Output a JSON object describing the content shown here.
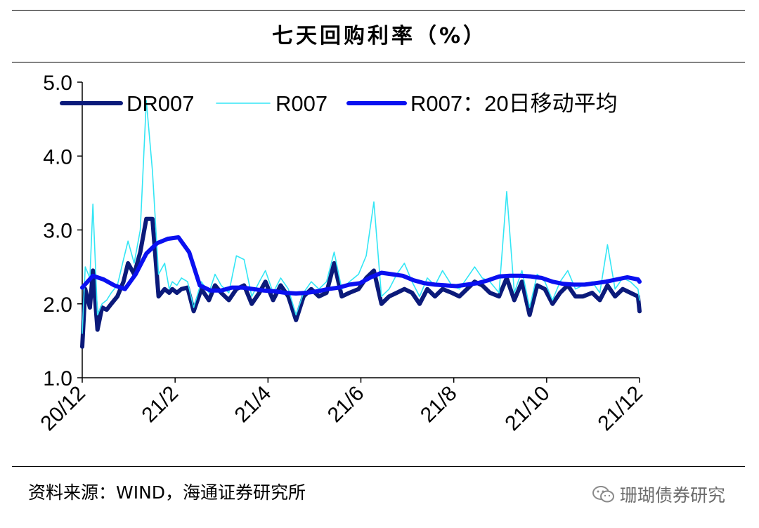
{
  "title": "七天回购利率（%）",
  "source": "资料来源：WIND，海通证券研究所",
  "watermark": "珊瑚债券研究",
  "colors": {
    "DR007": "#0b1a7a",
    "R007": "#33e6f5",
    "R007_ma20": "#0a10f0"
  },
  "chart_data": {
    "type": "line",
    "title": "七天回购利率（%）",
    "xlabel": "",
    "ylabel": "",
    "x_ticks": [
      "20/12",
      "21/2",
      "21/4",
      "21/6",
      "21/8",
      "21/10",
      "21/12"
    ],
    "ylim": [
      1.0,
      5.0
    ],
    "y_ticks": [
      "1.0",
      "2.0",
      "3.0",
      "4.0",
      "5.0"
    ],
    "grid": false,
    "legend_position": "top",
    "series": [
      {
        "name": "DR007",
        "x": [
          "2020-12-01",
          "2020-12-03",
          "2020-12-06",
          "2020-12-08",
          "2020-12-11",
          "2020-12-14",
          "2020-12-17",
          "2020-12-20",
          "2020-12-24",
          "2020-12-28",
          "2020-12-31",
          "2021-01-04",
          "2021-01-08",
          "2021-01-12",
          "2021-01-16",
          "2021-01-20",
          "2021-01-24",
          "2021-01-27",
          "2021-01-29",
          "2021-02-01",
          "2021-02-04",
          "2021-02-08",
          "2021-02-12",
          "2021-02-17",
          "2021-02-22",
          "2021-02-26",
          "2021-03-02",
          "2021-03-07",
          "2021-03-12",
          "2021-03-17",
          "2021-03-22",
          "2021-03-27",
          "2021-03-31",
          "2021-04-05",
          "2021-04-10",
          "2021-04-15",
          "2021-04-20",
          "2021-04-25",
          "2021-04-30",
          "2021-05-05",
          "2021-05-10",
          "2021-05-15",
          "2021-05-20",
          "2021-05-25",
          "2021-05-31",
          "2021-06-05",
          "2021-06-10",
          "2021-06-15",
          "2021-06-20",
          "2021-06-25",
          "2021-06-30",
          "2021-07-05",
          "2021-07-10",
          "2021-07-15",
          "2021-07-20",
          "2021-07-25",
          "2021-07-31",
          "2021-08-05",
          "2021-08-10",
          "2021-08-15",
          "2021-08-20",
          "2021-08-25",
          "2021-08-31",
          "2021-09-05",
          "2021-09-10",
          "2021-09-15",
          "2021-09-20",
          "2021-09-25",
          "2021-09-30",
          "2021-10-05",
          "2021-10-10",
          "2021-10-15",
          "2021-10-20",
          "2021-10-25",
          "2021-10-31",
          "2021-11-05",
          "2021-11-10",
          "2021-11-15",
          "2021-11-20",
          "2021-11-25",
          "2021-11-30",
          "2021-12-01"
        ],
        "values": [
          1.42,
          2.2,
          1.95,
          2.45,
          1.65,
          1.95,
          1.92,
          2.0,
          2.1,
          2.3,
          2.55,
          2.4,
          2.7,
          3.15,
          3.15,
          2.1,
          2.2,
          2.15,
          2.2,
          2.15,
          2.2,
          2.22,
          1.9,
          2.2,
          2.05,
          2.25,
          2.15,
          2.05,
          2.2,
          2.25,
          2.0,
          2.15,
          2.3,
          2.05,
          2.25,
          2.1,
          1.78,
          2.1,
          2.2,
          2.1,
          2.15,
          2.55,
          2.1,
          2.15,
          2.2,
          2.35,
          2.45,
          2.0,
          2.1,
          2.15,
          2.2,
          2.15,
          2.0,
          2.2,
          2.1,
          2.2,
          2.15,
          2.1,
          2.2,
          2.3,
          2.25,
          2.15,
          2.1,
          2.35,
          2.05,
          2.3,
          1.85,
          2.25,
          2.2,
          2.0,
          2.15,
          2.25,
          2.1,
          2.1,
          2.15,
          2.05,
          2.25,
          2.1,
          2.2,
          2.15,
          2.1,
          1.9
        ]
      },
      {
        "name": "R007",
        "x": [
          "2020-12-01",
          "2020-12-03",
          "2020-12-06",
          "2020-12-08",
          "2020-12-11",
          "2020-12-14",
          "2020-12-17",
          "2020-12-20",
          "2020-12-24",
          "2020-12-28",
          "2020-12-31",
          "2021-01-04",
          "2021-01-08",
          "2021-01-12",
          "2021-01-16",
          "2021-01-20",
          "2021-01-24",
          "2021-01-27",
          "2021-01-29",
          "2021-02-01",
          "2021-02-04",
          "2021-02-08",
          "2021-02-12",
          "2021-02-17",
          "2021-02-22",
          "2021-02-26",
          "2021-03-02",
          "2021-03-07",
          "2021-03-12",
          "2021-03-17",
          "2021-03-22",
          "2021-03-27",
          "2021-03-31",
          "2021-04-05",
          "2021-04-10",
          "2021-04-15",
          "2021-04-20",
          "2021-04-25",
          "2021-04-30",
          "2021-05-05",
          "2021-05-10",
          "2021-05-15",
          "2021-05-20",
          "2021-05-25",
          "2021-05-31",
          "2021-06-05",
          "2021-06-10",
          "2021-06-15",
          "2021-06-20",
          "2021-06-25",
          "2021-06-30",
          "2021-07-05",
          "2021-07-10",
          "2021-07-15",
          "2021-07-20",
          "2021-07-25",
          "2021-07-31",
          "2021-08-05",
          "2021-08-10",
          "2021-08-15",
          "2021-08-20",
          "2021-08-25",
          "2021-08-31",
          "2021-09-05",
          "2021-09-10",
          "2021-09-15",
          "2021-09-20",
          "2021-09-25",
          "2021-09-30",
          "2021-10-05",
          "2021-10-10",
          "2021-10-15",
          "2021-10-20",
          "2021-10-25",
          "2021-10-31",
          "2021-11-05",
          "2021-11-10",
          "2021-11-15",
          "2021-11-20",
          "2021-11-25",
          "2021-11-30",
          "2021-12-01"
        ],
        "values": [
          1.6,
          2.5,
          2.35,
          3.35,
          1.85,
          2.0,
          2.05,
          2.15,
          2.25,
          2.6,
          2.85,
          2.55,
          3.0,
          4.75,
          3.8,
          2.4,
          2.55,
          2.2,
          2.3,
          2.25,
          2.35,
          2.3,
          1.95,
          2.3,
          2.15,
          2.4,
          2.25,
          2.15,
          2.65,
          2.6,
          2.1,
          2.3,
          2.45,
          2.15,
          2.35,
          2.2,
          1.85,
          2.15,
          2.3,
          2.2,
          2.3,
          2.7,
          2.2,
          2.3,
          2.4,
          2.65,
          3.38,
          2.1,
          2.2,
          2.4,
          2.55,
          2.3,
          2.1,
          2.35,
          2.25,
          2.45,
          2.25,
          2.2,
          2.35,
          2.5,
          2.35,
          2.3,
          2.15,
          3.52,
          2.15,
          2.45,
          1.95,
          2.4,
          2.3,
          2.05,
          2.3,
          2.45,
          2.2,
          2.25,
          2.3,
          2.15,
          2.8,
          2.2,
          2.35,
          2.3,
          2.2,
          2.05
        ]
      },
      {
        "name": "R007：20日移动平均",
        "x": [
          "2020-12-01",
          "2020-12-08",
          "2020-12-15",
          "2020-12-22",
          "2020-12-29",
          "2021-01-05",
          "2021-01-12",
          "2021-01-19",
          "2021-01-26",
          "2021-02-02",
          "2021-02-09",
          "2021-02-16",
          "2021-02-23",
          "2021-03-02",
          "2021-03-09",
          "2021-03-16",
          "2021-03-23",
          "2021-03-30",
          "2021-04-06",
          "2021-04-13",
          "2021-04-20",
          "2021-04-27",
          "2021-05-04",
          "2021-05-11",
          "2021-05-18",
          "2021-05-25",
          "2021-06-01",
          "2021-06-08",
          "2021-06-15",
          "2021-06-22",
          "2021-06-29",
          "2021-07-06",
          "2021-07-13",
          "2021-07-20",
          "2021-07-27",
          "2021-08-03",
          "2021-08-10",
          "2021-08-17",
          "2021-08-24",
          "2021-08-31",
          "2021-09-07",
          "2021-09-14",
          "2021-09-21",
          "2021-09-28",
          "2021-10-05",
          "2021-10-12",
          "2021-10-19",
          "2021-10-26",
          "2021-11-02",
          "2021-11-09",
          "2021-11-16",
          "2021-11-23",
          "2021-11-30",
          "2021-12-01"
        ],
        "values": [
          2.22,
          2.38,
          2.33,
          2.25,
          2.2,
          2.4,
          2.68,
          2.82,
          2.88,
          2.9,
          2.7,
          2.25,
          2.18,
          2.18,
          2.22,
          2.22,
          2.2,
          2.18,
          2.17,
          2.15,
          2.14,
          2.15,
          2.17,
          2.2,
          2.22,
          2.26,
          2.28,
          2.36,
          2.42,
          2.4,
          2.38,
          2.32,
          2.28,
          2.26,
          2.25,
          2.24,
          2.26,
          2.28,
          2.32,
          2.37,
          2.38,
          2.38,
          2.37,
          2.35,
          2.3,
          2.27,
          2.26,
          2.26,
          2.28,
          2.3,
          2.33,
          2.36,
          2.33,
          2.3
        ]
      }
    ]
  }
}
